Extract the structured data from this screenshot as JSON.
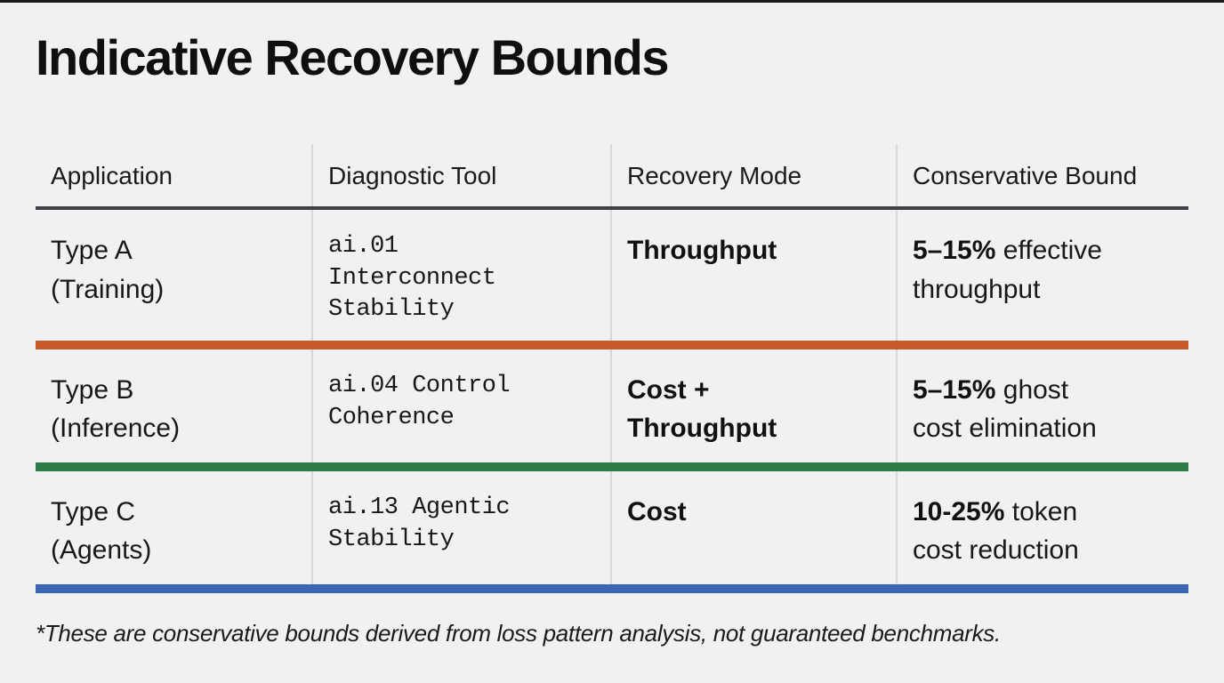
{
  "title": "Indicative Recovery Bounds",
  "colors": {
    "background": "#f1f1f3",
    "top_strip": "#1b1b1d",
    "header_rule": "#3f3f46",
    "column_divider": "#d8d8da",
    "row_a_accent": "#c65a2b",
    "row_b_accent": "#2e7b45",
    "row_c_accent": "#3d65b5"
  },
  "table": {
    "headers": [
      "Application",
      "Diagnostic Tool",
      "Recovery Mode",
      "Conservative Bound"
    ],
    "rows": [
      {
        "application": "Type A\n(Training)",
        "diagnostic_tool": "ai.01\nInterconnect\nStability",
        "recovery_mode": "Throughput",
        "bound_strong": "5–15%",
        "bound_rest": " effective\nthroughput",
        "accent": "#c65a2b"
      },
      {
        "application": "Type B\n(Inference)",
        "diagnostic_tool": "ai.04 Control\nCoherence",
        "recovery_mode": "Cost +\nThroughput",
        "bound_strong": "5–15%",
        "bound_rest": " ghost\ncost elimination",
        "accent": "#2e7b45"
      },
      {
        "application": "Type C\n(Agents)",
        "diagnostic_tool": "ai.13 Agentic\nStability",
        "recovery_mode": "Cost",
        "bound_strong": "10-25%",
        "bound_rest": " token\ncost reduction",
        "accent": "#3d65b5"
      }
    ]
  },
  "footnote": "*These are conservative bounds derived from loss pattern analysis, not guaranteed benchmarks."
}
